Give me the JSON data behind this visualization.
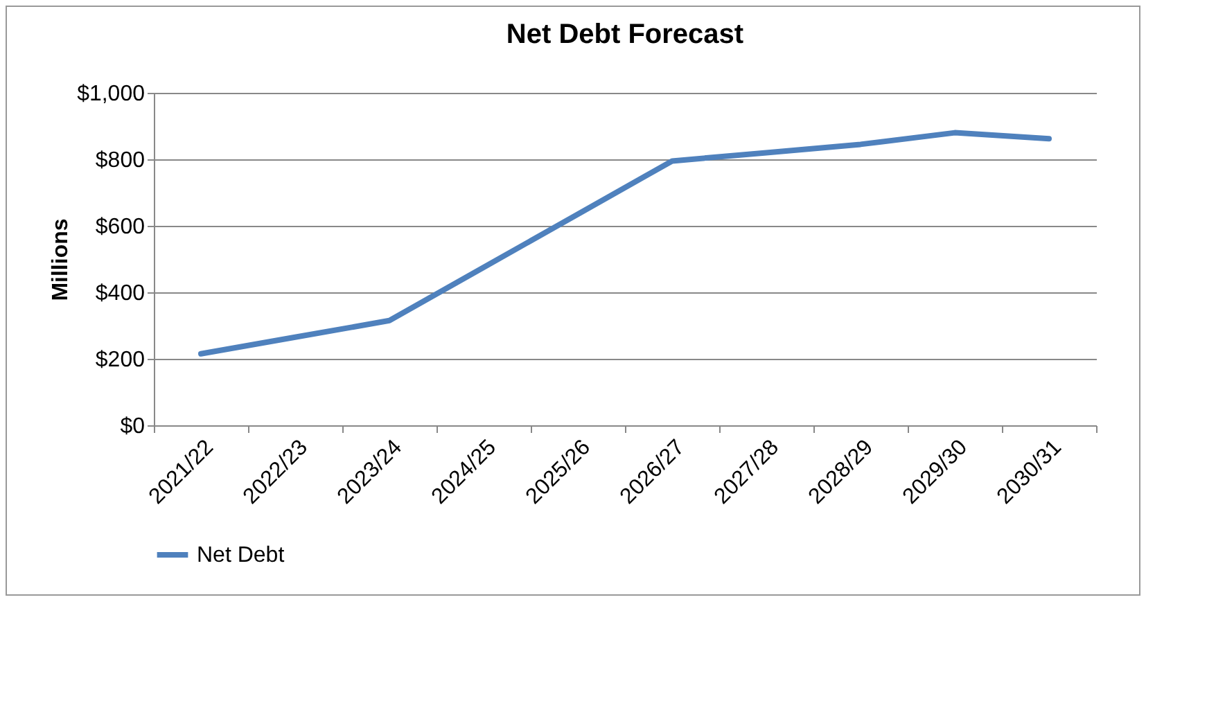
{
  "chart_data": {
    "type": "line",
    "title": "Net Debt Forecast",
    "ylabel": "Millions",
    "categories": [
      "2021/22",
      "2022/23",
      "2023/24",
      "2024/25",
      "2025/26",
      "2026/27",
      "2027/28",
      "2028/29",
      "2029/30",
      "2030/31"
    ],
    "series": [
      {
        "name": "Net Debt",
        "color": "#4f81bd",
        "values": [
          215,
          265,
          315,
          475,
          635,
          795,
          820,
          845,
          880,
          862
        ]
      }
    ],
    "ylim": [
      0,
      1000
    ],
    "yticks": [
      {
        "value": 0,
        "label": "$0"
      },
      {
        "value": 200,
        "label": "$200"
      },
      {
        "value": 400,
        "label": "$400"
      },
      {
        "value": 600,
        "label": "$600"
      },
      {
        "value": 800,
        "label": "$800"
      },
      {
        "value": 1000,
        "label": "$1,000"
      }
    ],
    "grid": "y",
    "legend": "bottom",
    "marker": "none",
    "line_style": "solid"
  }
}
